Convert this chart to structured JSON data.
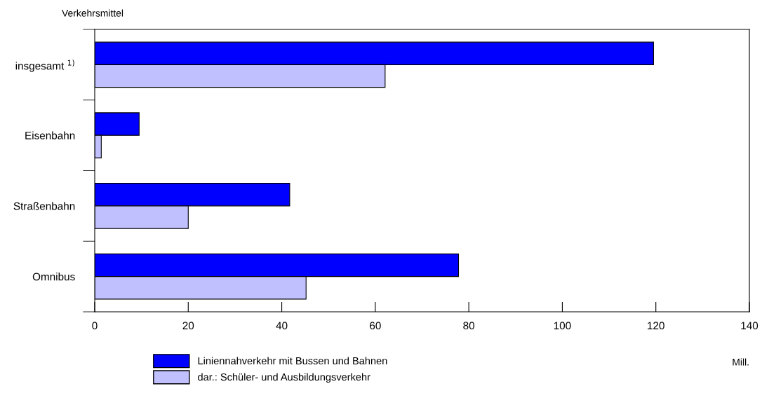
{
  "chart_data": {
    "type": "bar",
    "orientation": "horizontal",
    "ylabel": "Verkehrsmittel",
    "xlabel": "Mill.",
    "categories": [
      "insgesamt $^{1)}$",
      "Eisenbahn",
      "Straßenbahn",
      "Omnibus"
    ],
    "series": [
      {
        "name": "Liniennahverkehr mit Bussen und Bahnen",
        "color": "#0000ff",
        "values": [
          119.5,
          9.5,
          41.7,
          77.8
        ]
      },
      {
        "name": "dar.: Schüler- und Ausbildungsverkehr",
        "color": "#c0c0ff",
        "values": [
          62.1,
          1.4,
          20.0,
          45.2
        ]
      }
    ],
    "xlim": [
      0,
      140
    ],
    "xticks": [
      0,
      20,
      40,
      60,
      80,
      100,
      120,
      140
    ],
    "grid": false,
    "legend": "bottom"
  }
}
